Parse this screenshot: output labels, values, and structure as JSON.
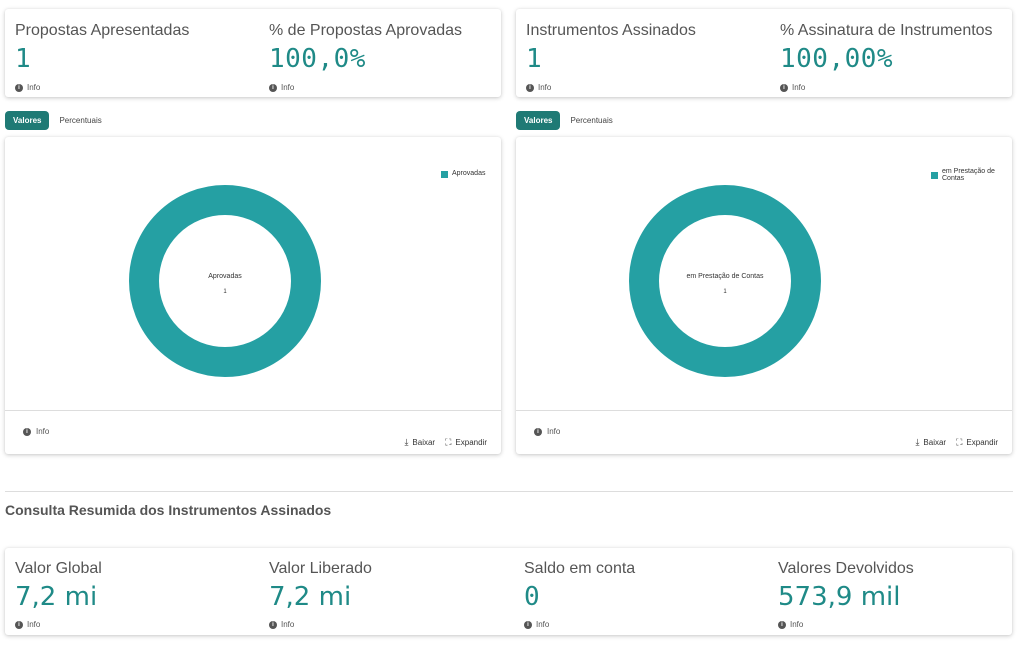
{
  "top_left_card": {
    "kpis": [
      {
        "title": "Propostas Apresentadas",
        "value": "1",
        "info": "Info"
      },
      {
        "title": "% de Propostas Aprovadas",
        "value": "100,0%",
        "info": "Info"
      }
    ]
  },
  "top_right_card": {
    "kpis": [
      {
        "title": "Instrumentos Assinados",
        "value": "1",
        "info": "Info"
      },
      {
        "title": "% Assinatura de Instrumentos",
        "value": "100,00%",
        "info": "Info"
      }
    ]
  },
  "left_chart": {
    "tabs": [
      {
        "label": "Valores",
        "active": true
      },
      {
        "label": "Percentuais",
        "active": false
      }
    ],
    "legend": "Aprovadas",
    "center_label": "Aprovadas",
    "center_value": "1",
    "info": "Info",
    "download_label": "Baixar",
    "expand_label": "Expandir",
    "color": "#25a0a3"
  },
  "right_chart": {
    "tabs": [
      {
        "label": "Valores",
        "active": true
      },
      {
        "label": "Percentuais",
        "active": false
      }
    ],
    "legend_line1": "em Prestação de",
    "legend_line2": "Contas",
    "center_label": "em Prestação de Contas",
    "center_value": "1",
    "info": "Info",
    "download_label": "Baixar",
    "expand_label": "Expandir",
    "color": "#25a0a3"
  },
  "chart_data": [
    {
      "type": "pie",
      "categories": [
        "Aprovadas"
      ],
      "values": [
        1
      ]
    },
    {
      "type": "pie",
      "categories": [
        "em Prestação de Contas"
      ],
      "values": [
        1
      ]
    }
  ],
  "section_title": "Consulta Resumida dos Instrumentos Assinados",
  "bottom_card": {
    "kpis": [
      {
        "title": "Valor Global",
        "value": "7,2 mi",
        "info": "Info"
      },
      {
        "title": "Valor Liberado",
        "value": "7,2 mi",
        "info": "Info"
      },
      {
        "title": "Saldo em conta",
        "value": "0",
        "info": "Info"
      },
      {
        "title": "Valores Devolvidos",
        "value": "573,9 mil",
        "info": "Info"
      }
    ]
  },
  "colors": {
    "accent": "#1f8a87",
    "tab_active": "#1f7a75",
    "donut": "#25a0a3"
  }
}
